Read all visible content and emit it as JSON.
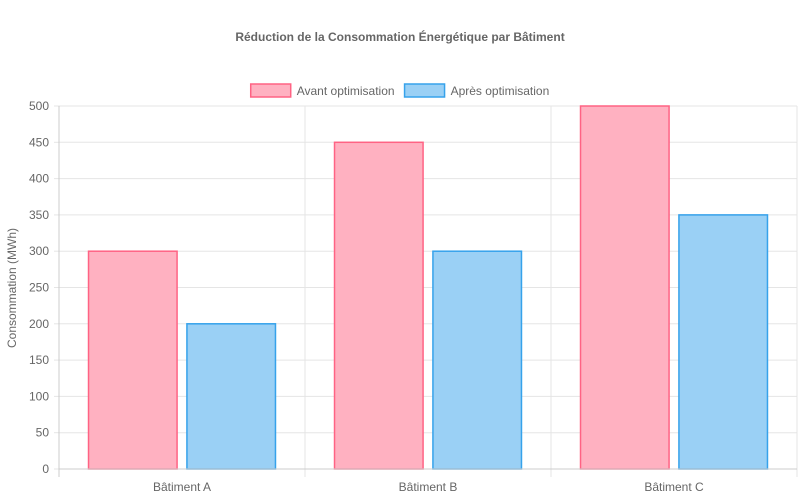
{
  "chart_data": {
    "type": "bar",
    "title": "Réduction de la Consommation Énergétique par Bâtiment",
    "xlabel": "",
    "ylabel": "Consommation (MWh)",
    "categories": [
      "Bâtiment A",
      "Bâtiment B",
      "Bâtiment C"
    ],
    "series": [
      {
        "name": "Avant optimisation",
        "values": [
          300,
          450,
          500
        ],
        "fill": "#ffb1c1",
        "stroke": "#ff6384"
      },
      {
        "name": "Après optimisation",
        "values": [
          200,
          300,
          350
        ],
        "fill": "#9ad0f5",
        "stroke": "#36a2eb"
      }
    ],
    "ylim": [
      0,
      500
    ],
    "yticks": [
      0,
      50,
      100,
      150,
      200,
      250,
      300,
      350,
      400,
      450,
      500
    ],
    "grid": true,
    "legend_position": "top"
  }
}
